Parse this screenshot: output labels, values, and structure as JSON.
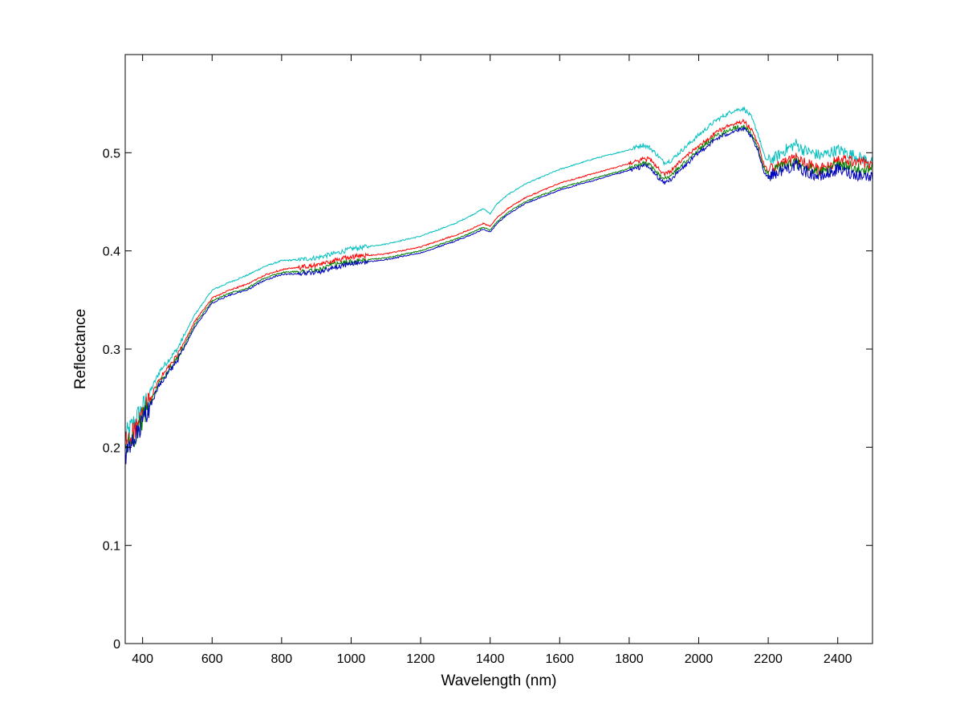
{
  "chart_data": {
    "type": "line",
    "title": "",
    "xlabel": "Wavelength (nm)",
    "ylabel": "Reflectance",
    "xlim": [
      350,
      2500
    ],
    "ylim": [
      0,
      0.6
    ],
    "x_ticks": [
      400,
      600,
      800,
      1000,
      1200,
      1400,
      1600,
      1800,
      2000,
      2200,
      2400
    ],
    "y_ticks": [
      0,
      0.1,
      0.2,
      0.3,
      0.4,
      0.5
    ],
    "y_tick_labels": [
      "0",
      "0.1",
      "0.2",
      "0.3",
      "0.4",
      "0.5"
    ],
    "grid": false,
    "legend": "none",
    "x": [
      350,
      375,
      400,
      450,
      500,
      550,
      600,
      650,
      700,
      750,
      800,
      850,
      900,
      950,
      1000,
      1100,
      1200,
      1300,
      1350,
      1380,
      1400,
      1420,
      1450,
      1500,
      1600,
      1700,
      1800,
      1830,
      1840,
      1860,
      1880,
      1900,
      1920,
      1950,
      2000,
      2050,
      2100,
      2130,
      2150,
      2170,
      2190,
      2200,
      2220,
      2250,
      2280,
      2300,
      2350,
      2400,
      2450,
      2500
    ],
    "series": [
      {
        "color": "#00bfbf",
        "values": [
          0.21,
          0.225,
          0.24,
          0.278,
          0.3,
          0.335,
          0.36,
          0.368,
          0.375,
          0.384,
          0.39,
          0.391,
          0.393,
          0.397,
          0.402,
          0.407,
          0.415,
          0.428,
          0.437,
          0.443,
          0.438,
          0.448,
          0.457,
          0.468,
          0.483,
          0.494,
          0.503,
          0.507,
          0.508,
          0.505,
          0.498,
          0.49,
          0.492,
          0.502,
          0.518,
          0.533,
          0.543,
          0.545,
          0.537,
          0.52,
          0.495,
          0.492,
          0.495,
          0.503,
          0.509,
          0.503,
          0.497,
          0.503,
          0.497,
          0.49
        ]
      },
      {
        "color": "#ff0000",
        "values": [
          0.205,
          0.215,
          0.232,
          0.27,
          0.293,
          0.328,
          0.352,
          0.36,
          0.366,
          0.375,
          0.381,
          0.383,
          0.385,
          0.39,
          0.394,
          0.397,
          0.404,
          0.416,
          0.423,
          0.428,
          0.425,
          0.434,
          0.443,
          0.454,
          0.469,
          0.479,
          0.489,
          0.492,
          0.494,
          0.493,
          0.486,
          0.478,
          0.481,
          0.492,
          0.507,
          0.521,
          0.53,
          0.532,
          0.525,
          0.51,
          0.485,
          0.482,
          0.485,
          0.49,
          0.494,
          0.49,
          0.483,
          0.492,
          0.492,
          0.488
        ]
      },
      {
        "color": "#008000",
        "values": [
          0.198,
          0.21,
          0.228,
          0.267,
          0.29,
          0.325,
          0.349,
          0.357,
          0.362,
          0.372,
          0.378,
          0.379,
          0.38,
          0.386,
          0.389,
          0.393,
          0.4,
          0.412,
          0.419,
          0.424,
          0.421,
          0.43,
          0.439,
          0.45,
          0.464,
          0.474,
          0.484,
          0.487,
          0.49,
          0.487,
          0.48,
          0.473,
          0.477,
          0.487,
          0.503,
          0.517,
          0.525,
          0.527,
          0.52,
          0.505,
          0.482,
          0.478,
          0.482,
          0.487,
          0.49,
          0.486,
          0.479,
          0.488,
          0.485,
          0.482
        ]
      },
      {
        "color": "#0000bf",
        "values": [
          0.19,
          0.205,
          0.225,
          0.265,
          0.288,
          0.322,
          0.347,
          0.355,
          0.36,
          0.37,
          0.376,
          0.377,
          0.378,
          0.383,
          0.387,
          0.391,
          0.398,
          0.41,
          0.417,
          0.422,
          0.419,
          0.428,
          0.437,
          0.448,
          0.462,
          0.472,
          0.482,
          0.485,
          0.488,
          0.484,
          0.476,
          0.469,
          0.473,
          0.483,
          0.5,
          0.514,
          0.522,
          0.524,
          0.517,
          0.502,
          0.479,
          0.476,
          0.479,
          0.484,
          0.487,
          0.482,
          0.475,
          0.483,
          0.478,
          0.475
        ]
      }
    ]
  }
}
